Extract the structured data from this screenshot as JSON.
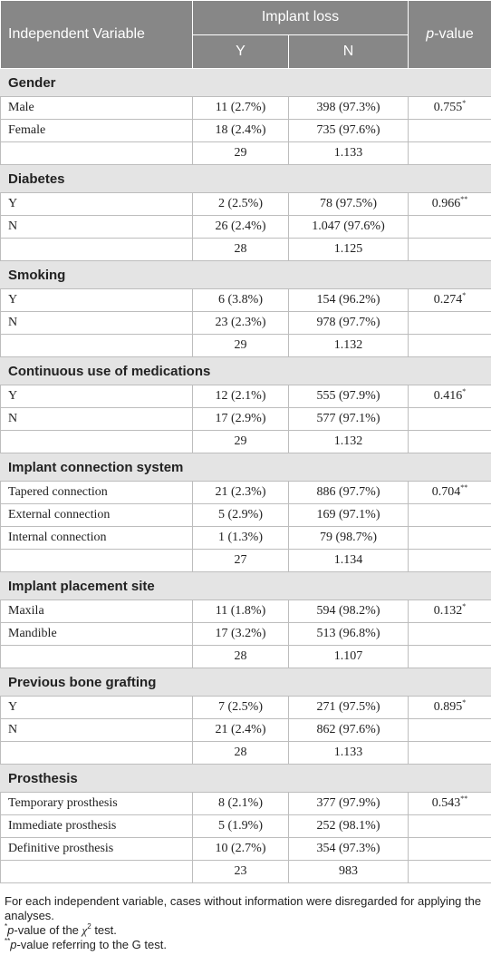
{
  "header": {
    "independent_variable": "Independent Variable",
    "implant_loss": "Implant loss",
    "col_y": "Y",
    "col_n": "N",
    "p_value_italic": "p",
    "p_value_rest": "-value"
  },
  "groups": [
    {
      "title": "Gender",
      "rows": [
        {
          "label": "Male",
          "y": "11 (2.7%)",
          "n": "398 (97.3%)",
          "p": "0.755",
          "sup": "*"
        },
        {
          "label": "Female",
          "y": "18 (2.4%)",
          "n": "735 (97.6%)",
          "p": "",
          "sup": ""
        },
        {
          "label": "",
          "y": "29",
          "n": "1.133",
          "p": "",
          "sup": ""
        }
      ]
    },
    {
      "title": "Diabetes",
      "rows": [
        {
          "label": "Y",
          "y": "2 (2.5%)",
          "n": "78 (97.5%)",
          "p": "0.966",
          "sup": "**"
        },
        {
          "label": "N",
          "y": "26 (2.4%)",
          "n": "1.047 (97.6%)",
          "p": "",
          "sup": ""
        },
        {
          "label": "",
          "y": "28",
          "n": "1.125",
          "p": "",
          "sup": ""
        }
      ]
    },
    {
      "title": "Smoking",
      "rows": [
        {
          "label": "Y",
          "y": "6 (3.8%)",
          "n": "154 (96.2%)",
          "p": "0.274",
          "sup": "*"
        },
        {
          "label": "N",
          "y": "23 (2.3%)",
          "n": "978 (97.7%)",
          "p": "",
          "sup": ""
        },
        {
          "label": "",
          "y": "29",
          "n": "1.132",
          "p": "",
          "sup": ""
        }
      ]
    },
    {
      "title": "Continuous use of medications",
      "rows": [
        {
          "label": "Y",
          "y": "12 (2.1%)",
          "n": "555 (97.9%)",
          "p": "0.416",
          "sup": "*"
        },
        {
          "label": "N",
          "y": "17 (2.9%)",
          "n": "577 (97.1%)",
          "p": "",
          "sup": ""
        },
        {
          "label": "",
          "y": "29",
          "n": "1.132",
          "p": "",
          "sup": ""
        }
      ]
    },
    {
      "title": "Implant connection system",
      "rows": [
        {
          "label": "Tapered connection",
          "y": "21 (2.3%)",
          "n": "886 (97.7%)",
          "p": "0.704",
          "sup": "**"
        },
        {
          "label": "External connection",
          "y": "5 (2.9%)",
          "n": "169 (97.1%)",
          "p": "",
          "sup": ""
        },
        {
          "label": "Internal connection",
          "y": "1 (1.3%)",
          "n": "79 (98.7%)",
          "p": "",
          "sup": ""
        },
        {
          "label": "",
          "y": "27",
          "n": "1.134",
          "p": "",
          "sup": ""
        }
      ]
    },
    {
      "title": "Implant placement site",
      "rows": [
        {
          "label": "Maxila",
          "y": "11 (1.8%)",
          "n": "594 (98.2%)",
          "p": "0.132",
          "sup": "*"
        },
        {
          "label": "Mandible",
          "y": "17 (3.2%)",
          "n": "513 (96.8%)",
          "p": "",
          "sup": ""
        },
        {
          "label": "",
          "y": "28",
          "n": "1.107",
          "p": "",
          "sup": ""
        }
      ]
    },
    {
      "title": "Previous bone grafting",
      "rows": [
        {
          "label": "Y",
          "y": "7 (2.5%)",
          "n": "271 (97.5%)",
          "p": "0.895",
          "sup": "*"
        },
        {
          "label": "N",
          "y": "21 (2.4%)",
          "n": "862 (97.6%)",
          "p": "",
          "sup": ""
        },
        {
          "label": "",
          "y": "28",
          "n": "1.133",
          "p": "",
          "sup": ""
        }
      ]
    },
    {
      "title": "Prosthesis",
      "rows": [
        {
          "label": "Temporary prosthesis",
          "y": "8 (2.1%)",
          "n": "377 (97.9%)",
          "p": "0.543",
          "sup": "**"
        },
        {
          "label": "Immediate prosthesis",
          "y": "5 (1.9%)",
          "n": "252 (98.1%)",
          "p": "",
          "sup": ""
        },
        {
          "label": "Definitive prosthesis",
          "y": "10 (2.7%)",
          "n": "354 (97.3%)",
          "p": "",
          "sup": ""
        },
        {
          "label": "",
          "y": "23",
          "n": "983",
          "p": "",
          "sup": ""
        }
      ]
    }
  ],
  "footnotes": {
    "note": "For each independent variable, cases without information were disregarded for applying the analyses.",
    "chi_mark": "*",
    "chi_italic": "p",
    "chi_text_a": "-value of the ",
    "chi_symbol": "χ",
    "chi_sup": "2",
    "chi_text_b": " test.",
    "g_mark": "**",
    "g_italic": "p",
    "g_text": "-value referring to the G test."
  }
}
